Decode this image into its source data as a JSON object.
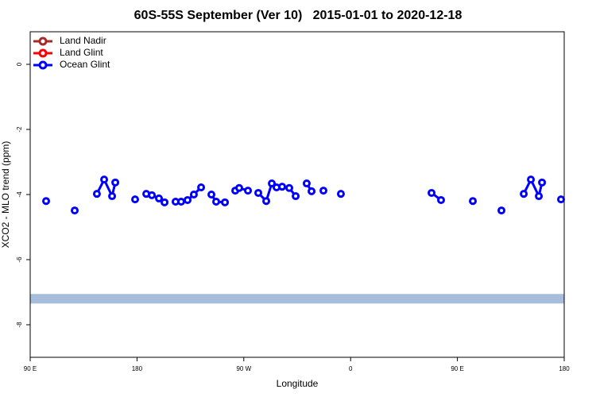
{
  "chart_data": {
    "type": "line",
    "title": "60S-55S September (Ver 10)   2015-01-01 to 2020-12-18",
    "xlabel": "Longitude",
    "ylabel": "XCO2 - MLO trend (ppm)",
    "xlim": [
      90,
      540
    ],
    "ylim": [
      -9,
      1
    ],
    "xticks": [
      {
        "value": 90,
        "label": "90 E"
      },
      180,
      {
        "value": 270,
        "label": "90 W"
      },
      {
        "value": 360,
        "label": "0"
      },
      {
        "value": 450,
        "label": "90 E"
      },
      {
        "value": 540,
        "label": "180"
      }
    ],
    "yticks": [
      0,
      -2,
      -4,
      -6,
      -8
    ],
    "legend": "top-left",
    "reference_line": -7.2,
    "reference_color": "#a6bddb",
    "series": [
      {
        "name": "Land Nadir",
        "color": "#a52a2a",
        "x": [],
        "values": []
      },
      {
        "name": "Land Glint",
        "color": "#ff0000",
        "x": [],
        "values": []
      },
      {
        "name": "Ocean Glint",
        "color": "#0000ff",
        "x": [
          103.4,
          null,
          127.5,
          null,
          146.2,
          152.3,
          159.0,
          161.7,
          null,
          178.4,
          null,
          187.8,
          192.5,
          198.5,
          203.2,
          null,
          212.5,
          217.2,
          222.6,
          227.9,
          234.0,
          null,
          242.7,
          246.7,
          254.1,
          null,
          262.8,
          266.1,
          273.5,
          null,
          282.2,
          288.9,
          293.6,
          297.6,
          302.3,
          308.3,
          313.7,
          null,
          323.0,
          327.1,
          null,
          337.1,
          null,
          351.8,
          null,
          428.2,
          436.2,
          null,
          463.0,
          null,
          487.1,
          null,
          505.9,
          511.9,
          518.6,
          521.3,
          null,
          537.3
        ],
        "values": [
          -4.2,
          null,
          -4.49,
          null,
          -3.98,
          -3.54,
          -4.05,
          -3.63,
          null,
          -4.15,
          null,
          -3.98,
          -4.02,
          -4.12,
          -4.24,
          null,
          -4.22,
          -4.22,
          -4.17,
          -4.0,
          -3.78,
          null,
          -4.0,
          -4.22,
          -4.24,
          null,
          -3.88,
          -3.8,
          -3.88,
          null,
          -3.95,
          -4.2,
          -3.66,
          -3.78,
          -3.76,
          -3.8,
          -4.05,
          null,
          -3.66,
          -3.9,
          null,
          -3.88,
          null,
          -3.98,
          null,
          -3.95,
          -4.17,
          null,
          -4.2,
          null,
          -4.49,
          null,
          -3.98,
          -3.54,
          -4.05,
          -3.63,
          null,
          -4.15
        ]
      }
    ]
  }
}
